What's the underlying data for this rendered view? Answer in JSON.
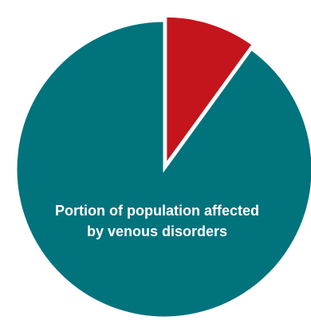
{
  "chart_data": {
    "type": "pie",
    "slices": [
      {
        "label": "Portion of population affected by venous disorders",
        "label_lines": [
          "Portion of population affected",
          "by venous disorders"
        ],
        "value": 10,
        "color": "#c4151c",
        "exploded": true
      },
      {
        "label": "",
        "value": 90,
        "color": "#00737d",
        "exploded": false
      }
    ],
    "legend": "none",
    "start_angle_deg": 0,
    "direction": "clockwise"
  }
}
